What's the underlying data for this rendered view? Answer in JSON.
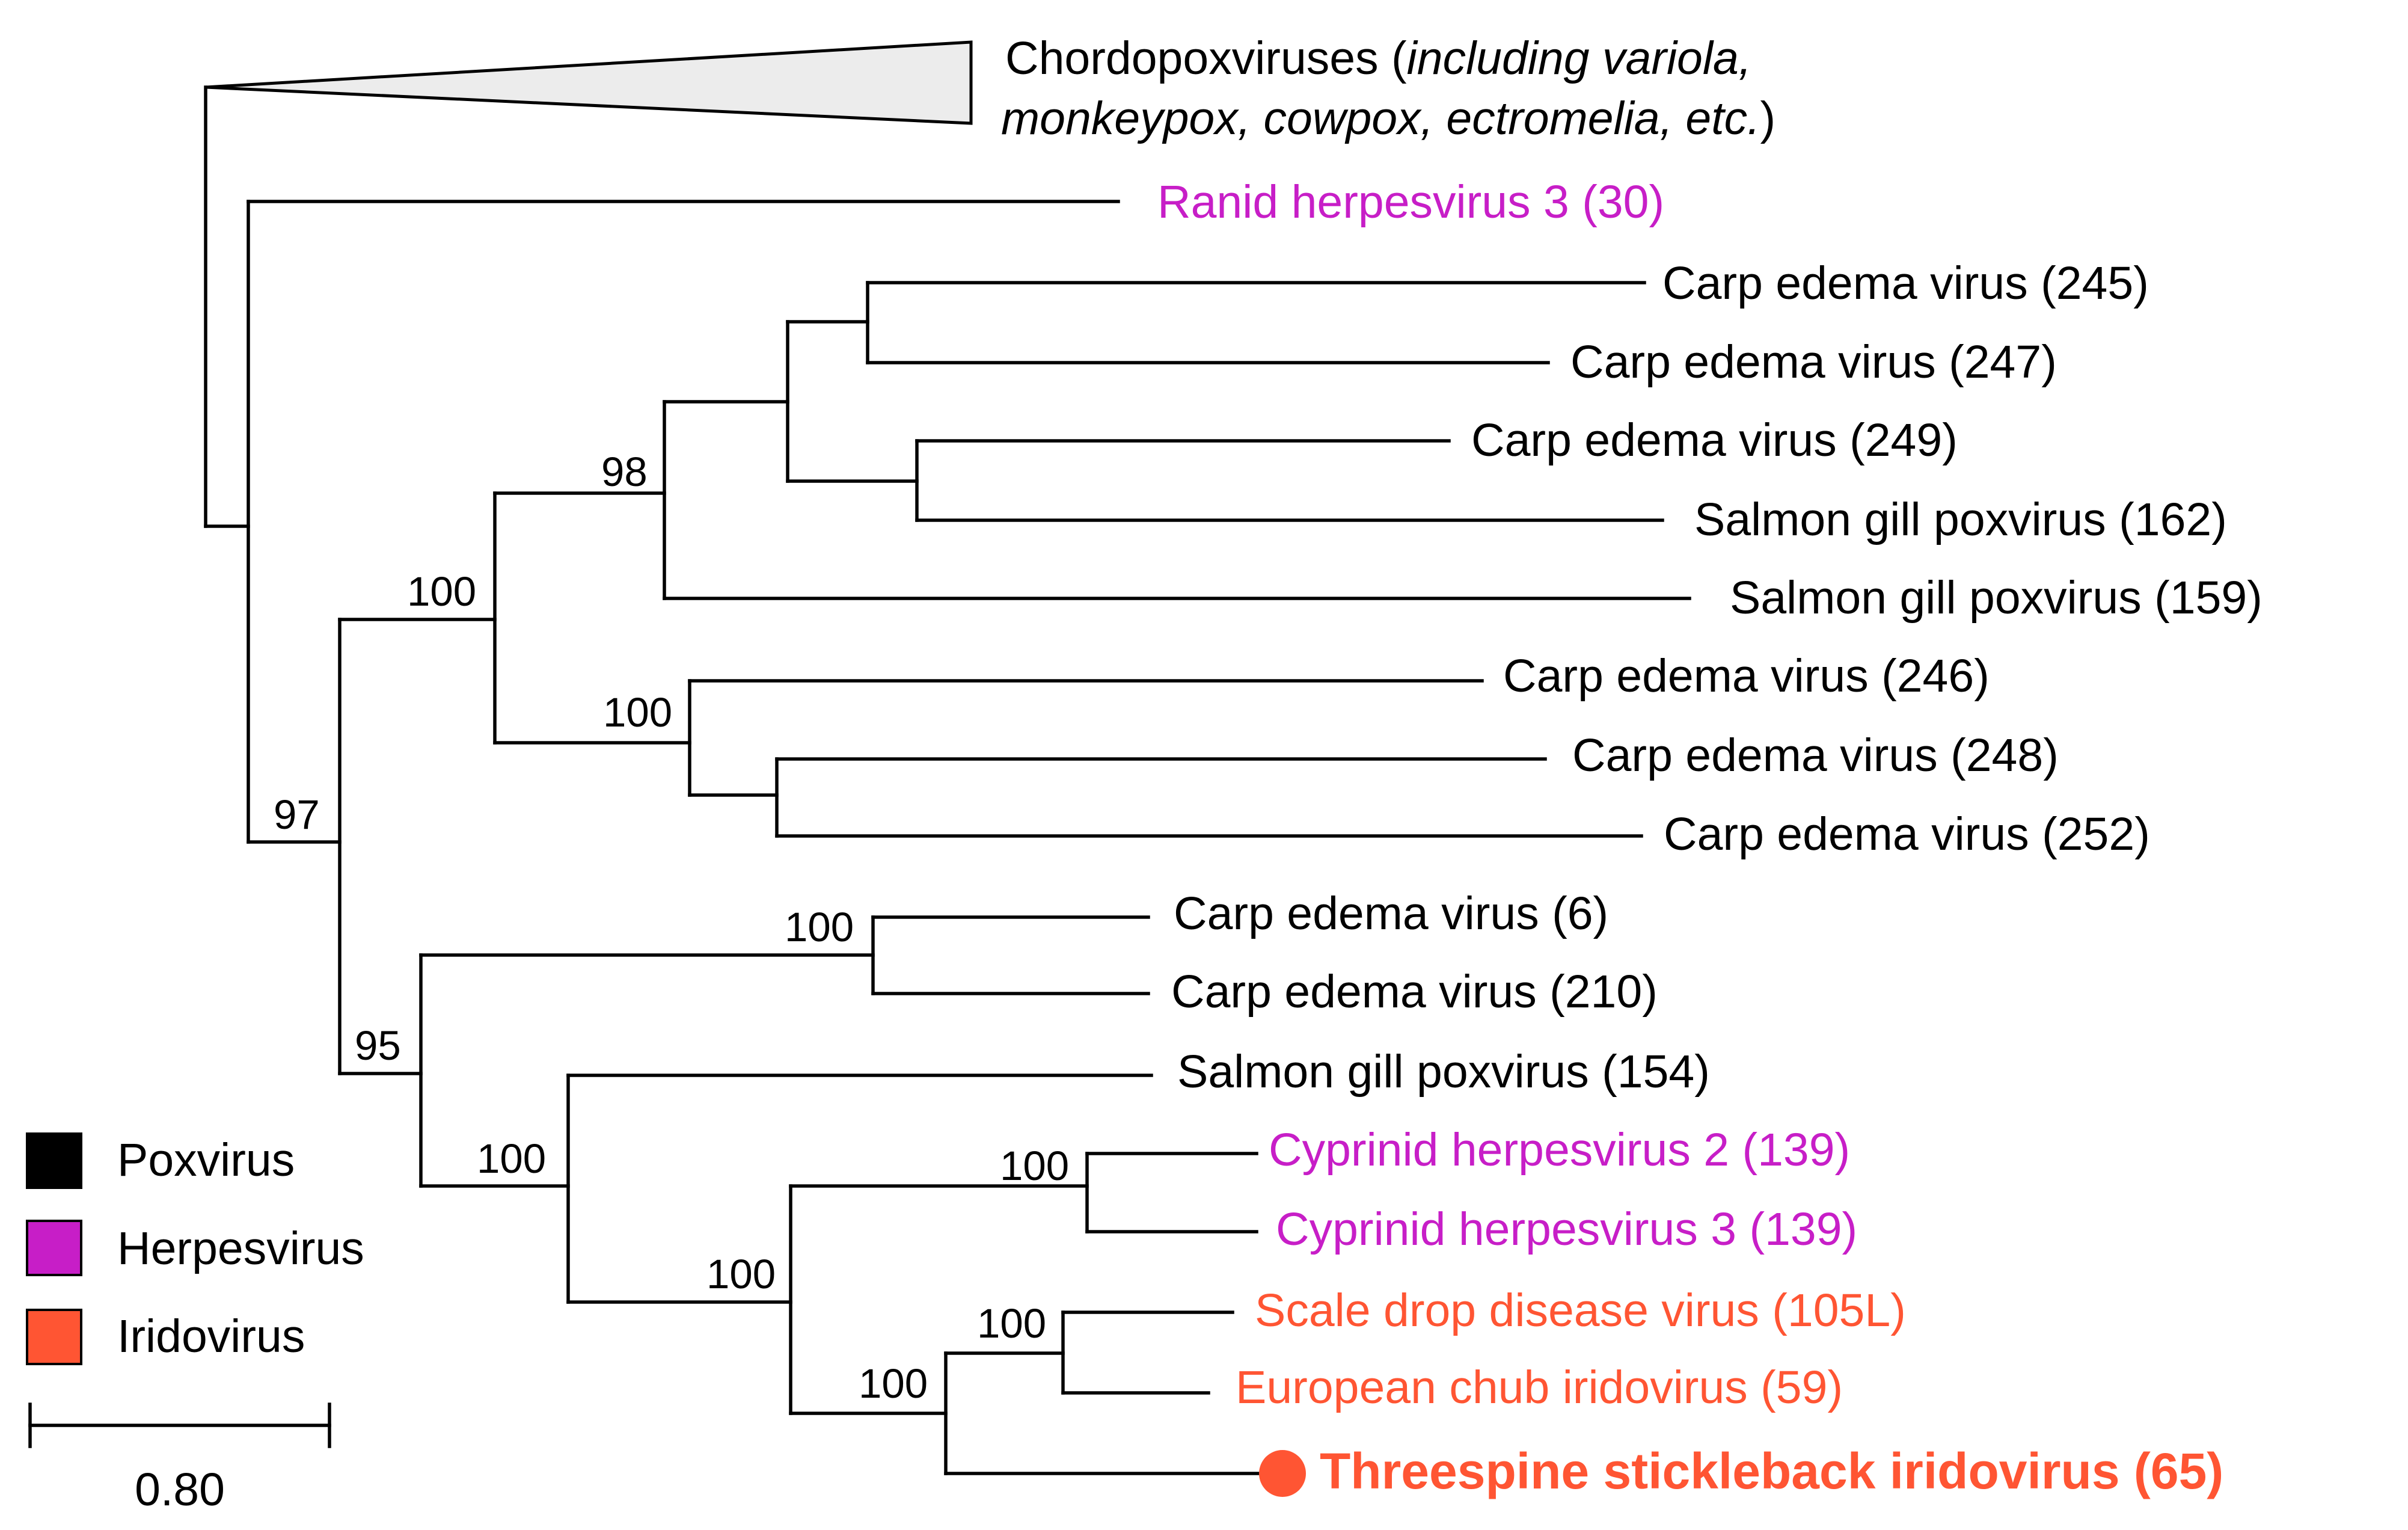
{
  "colors": {
    "poxvirus": "#000000",
    "herpesvirus": "#c71ec7",
    "iridovirus": "#ff5533",
    "collapsed_clade_fill": "#ececec"
  },
  "collapsed_clade": {
    "name": "Chordopoxviruses",
    "open_paren": " (",
    "italic_line1": "including variola,",
    "italic_line2": "monkeypox, cowpox, ectromelia, etc.",
    "close_paren": ")"
  },
  "taxa": {
    "ranid_herpes_3": {
      "label": "Ranid herpesvirus 3 (30)",
      "group": "herpesvirus"
    },
    "carp_245": {
      "label": "Carp edema virus (245)",
      "group": "poxvirus"
    },
    "carp_247": {
      "label": "Carp edema virus (247)",
      "group": "poxvirus"
    },
    "carp_249": {
      "label": "Carp edema virus (249)",
      "group": "poxvirus"
    },
    "salmon_162": {
      "label": "Salmon gill poxvirus (162)",
      "group": "poxvirus"
    },
    "salmon_159": {
      "label": "Salmon gill poxvirus (159)",
      "group": "poxvirus"
    },
    "carp_246": {
      "label": "Carp edema virus (246)",
      "group": "poxvirus"
    },
    "carp_248": {
      "label": "Carp edema virus (248)",
      "group": "poxvirus"
    },
    "carp_252": {
      "label": "Carp edema virus (252)",
      "group": "poxvirus"
    },
    "carp_6": {
      "label": "Carp edema virus (6)",
      "group": "poxvirus"
    },
    "carp_210": {
      "label": "Carp edema virus (210)",
      "group": "poxvirus"
    },
    "salmon_154": {
      "label": "Salmon gill poxvirus (154)",
      "group": "poxvirus"
    },
    "cyprinid_herpes_2": {
      "label": "Cyprinid herpesvirus 2 (139)",
      "group": "herpesvirus"
    },
    "cyprinid_herpes_3": {
      "label": "Cyprinid herpesvirus 3 (139)",
      "group": "herpesvirus"
    },
    "scale_drop": {
      "label": "Scale drop disease virus (105L)",
      "group": "iridovirus"
    },
    "european_chub": {
      "label": "European chub iridovirus (59)",
      "group": "iridovirus"
    },
    "threespine": {
      "label": "Threespine stickleback iridovirus (65)",
      "group": "iridovirus",
      "highlighted": true
    }
  },
  "support_values": {
    "n98": "98",
    "n100_a": "100",
    "n100_b": "100",
    "n97": "97",
    "n100_c": "100",
    "n95": "95",
    "n100_d": "100",
    "n100_e": "100",
    "n100_f": "100",
    "n100_g": "100",
    "n100_h": "100"
  },
  "legend": [
    {
      "label": "Poxvirus",
      "group": "poxvirus"
    },
    {
      "label": "Herpesvirus",
      "group": "herpesvirus"
    },
    {
      "label": "Iridovirus",
      "group": "iridovirus"
    }
  ],
  "scale_bar": {
    "label": "0.80",
    "value": 0.8
  }
}
